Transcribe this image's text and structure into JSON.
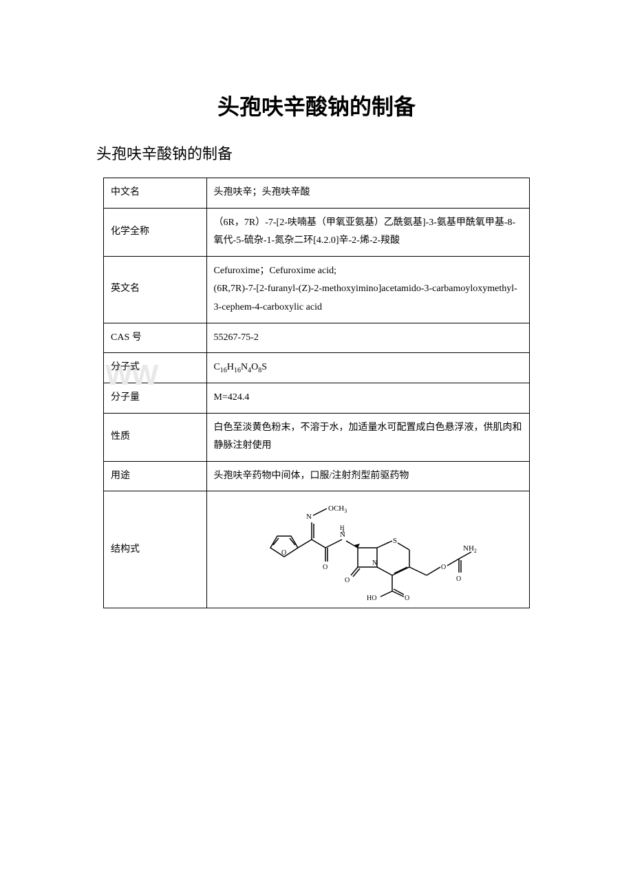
{
  "title": "头孢呋辛酸钠的制备",
  "subtitle": "头孢呋辛酸钠的制备",
  "table": {
    "rows": [
      {
        "label": "中文名",
        "value": "头孢呋辛；头孢呋辛酸"
      },
      {
        "label": "化学全称",
        "value": "（6R，7R）-7-[2-呋喃基（甲氧亚氨基）乙酰氨基]-3-氨基甲酰氧甲基-8-氧代-5-硫杂-1-氮杂二环[4.2.0]辛-2-烯-2-羧酸"
      },
      {
        "label": "英文名",
        "value": "Cefuroxime；Cefuroxime acid;\n(6R,7R)-7-[2-furanyl-(Z)-2-methoxyimino]acetamido-3-carbamoyloxymethyl-3-cephem-4-carboxylic acid"
      },
      {
        "label": "CAS 号",
        "value": "55267-75-2"
      },
      {
        "label": "分子式",
        "value": "C16H16N4O8S",
        "is_formula": true
      },
      {
        "label": "分子量",
        "value": "M=424.4"
      },
      {
        "label": "性质",
        "value": "白色至淡黄色粉末，不溶于水，加适量水可配置成白色悬浮液，供肌肉和静脉注射使用"
      },
      {
        "label": "用途",
        "value": "头孢呋辛药物中间体，口服/注射剂型前驱药物"
      },
      {
        "label": "结构式",
        "value": "",
        "is_structure": true
      }
    ]
  },
  "watermark_lines": [
    "WW",
    "WW"
  ],
  "structure_labels": {
    "och3": "OCH",
    "nh2": "NH",
    "ho": "HO",
    "n": "N",
    "h": "H",
    "o": "O",
    "s": "S"
  },
  "colors": {
    "text": "#000000",
    "border": "#000000",
    "background": "#ffffff",
    "watermark": "#e8e8e8"
  }
}
